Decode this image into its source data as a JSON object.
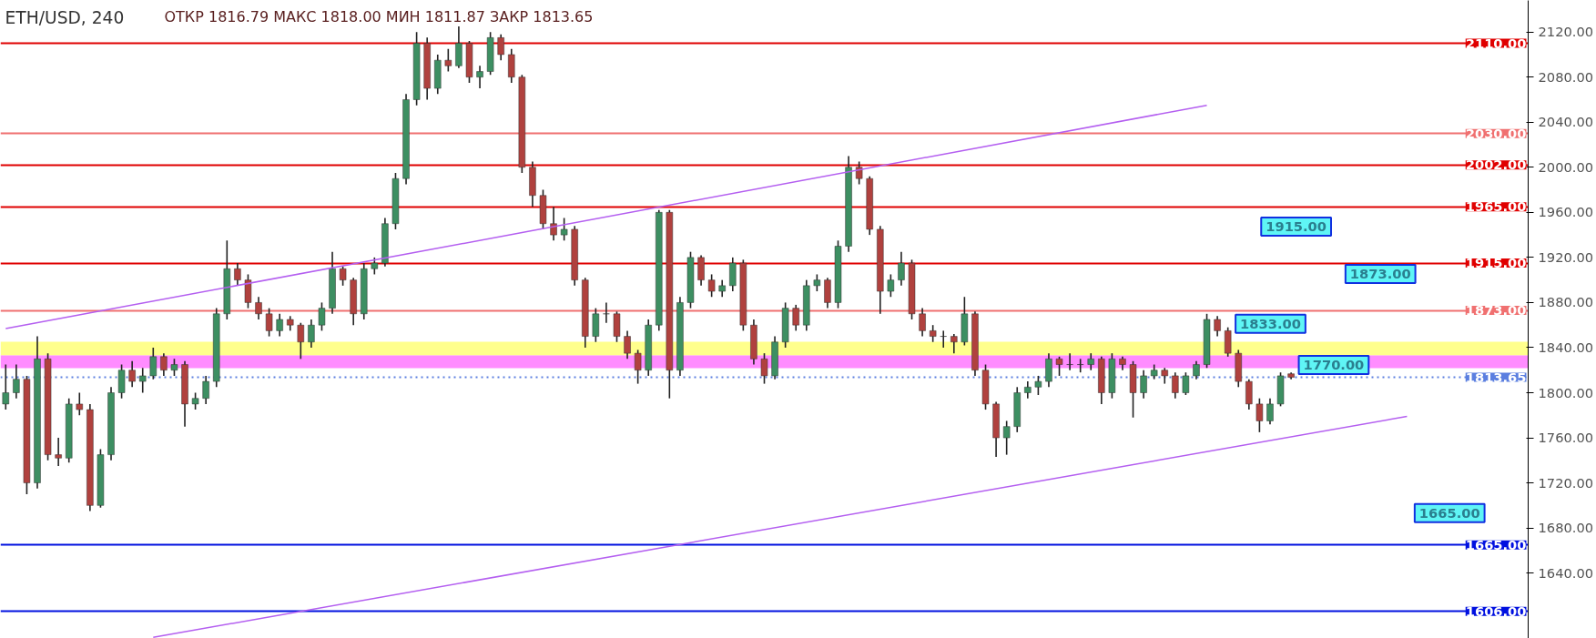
{
  "chart_data": {
    "type": "candlestick",
    "title": "ETH/USD, 240",
    "subtitle": "ОТКР 1816.79 МАКС 1818.00 МИН 1811.87 ЗАКР 1813.65",
    "categories": [
      null,
      null,
      null,
      null,
      null,
      null,
      null,
      null,
      null,
      null,
      null,
      null,
      null,
      null,
      null,
      null,
      null,
      null,
      null,
      null,
      null,
      null,
      null,
      null,
      null,
      null,
      null,
      null,
      null,
      null,
      null,
      null,
      null,
      null,
      null,
      null,
      null,
      null,
      null,
      null,
      null,
      null,
      null,
      null,
      null,
      null,
      null,
      null,
      null,
      null,
      null,
      null,
      null,
      null,
      null,
      null,
      null,
      null,
      null,
      null,
      null,
      null,
      null,
      null,
      null,
      null,
      null,
      null,
      null,
      null,
      null,
      null,
      null,
      null,
      null,
      null,
      null,
      null,
      null,
      null,
      null,
      null,
      null,
      null,
      null,
      null,
      null,
      null,
      null,
      null,
      null,
      null,
      null,
      null,
      null,
      null,
      null,
      null,
      null,
      null,
      null,
      null,
      null,
      null,
      null,
      null,
      null,
      null,
      null,
      null,
      null,
      null,
      null,
      null,
      null,
      null,
      null,
      null,
      null,
      null,
      null,
      null,
      null,
      null,
      null,
      null,
      null,
      null,
      null,
      null,
      null,
      null,
      null,
      null,
      null,
      null,
      null,
      null,
      null,
      null,
      null,
      null,
      null,
      null,
      null
    ],
    "ohlc": [
      [
        1790,
        1825,
        1785,
        1800
      ],
      [
        1800,
        1825,
        1795,
        1812
      ],
      [
        1812,
        1815,
        1710,
        1720
      ],
      [
        1720,
        1850,
        1715,
        1830
      ],
      [
        1830,
        1835,
        1740,
        1745
      ],
      [
        1745,
        1760,
        1735,
        1742
      ],
      [
        1742,
        1795,
        1738,
        1790
      ],
      [
        1790,
        1800,
        1780,
        1785
      ],
      [
        1785,
        1790,
        1695,
        1700
      ],
      [
        1700,
        1750,
        1698,
        1745
      ],
      [
        1745,
        1805,
        1740,
        1800
      ],
      [
        1800,
        1825,
        1795,
        1820
      ],
      [
        1820,
        1828,
        1805,
        1810
      ],
      [
        1810,
        1822,
        1800,
        1815
      ],
      [
        1815,
        1840,
        1812,
        1832
      ],
      [
        1832,
        1835,
        1815,
        1820
      ],
      [
        1820,
        1830,
        1815,
        1825
      ],
      [
        1825,
        1828,
        1770,
        1790
      ],
      [
        1790,
        1800,
        1785,
        1795
      ],
      [
        1795,
        1815,
        1790,
        1810
      ],
      [
        1810,
        1875,
        1805,
        1870
      ],
      [
        1870,
        1935,
        1865,
        1910
      ],
      [
        1910,
        1915,
        1895,
        1900
      ],
      [
        1900,
        1905,
        1875,
        1880
      ],
      [
        1880,
        1885,
        1865,
        1870
      ],
      [
        1870,
        1875,
        1850,
        1855
      ],
      [
        1855,
        1870,
        1850,
        1865
      ],
      [
        1865,
        1868,
        1855,
        1860
      ],
      [
        1860,
        1862,
        1830,
        1845
      ],
      [
        1845,
        1865,
        1840,
        1860
      ],
      [
        1860,
        1880,
        1855,
        1875
      ],
      [
        1875,
        1925,
        1870,
        1910
      ],
      [
        1910,
        1912,
        1895,
        1900
      ],
      [
        1900,
        1902,
        1860,
        1870
      ],
      [
        1870,
        1915,
        1865,
        1910
      ],
      [
        1910,
        1920,
        1905,
        1915
      ],
      [
        1915,
        1955,
        1912,
        1950
      ],
      [
        1950,
        1995,
        1945,
        1990
      ],
      [
        1990,
        2065,
        1985,
        2060
      ],
      [
        2060,
        2120,
        2055,
        2110
      ],
      [
        2110,
        2115,
        2060,
        2070
      ],
      [
        2070,
        2100,
        2065,
        2095
      ],
      [
        2095,
        2105,
        2085,
        2090
      ],
      [
        2090,
        2125,
        2088,
        2110
      ],
      [
        2110,
        2112,
        2075,
        2080
      ],
      [
        2080,
        2090,
        2070,
        2085
      ],
      [
        2085,
        2120,
        2082,
        2115
      ],
      [
        2115,
        2118,
        2095,
        2100
      ],
      [
        2100,
        2105,
        2075,
        2080
      ],
      [
        2080,
        2082,
        1995,
        2000
      ],
      [
        2000,
        2005,
        1965,
        1975
      ],
      [
        1975,
        1980,
        1945,
        1950
      ],
      [
        1950,
        1965,
        1935,
        1940
      ],
      [
        1940,
        1955,
        1935,
        1945
      ],
      [
        1945,
        1948,
        1895,
        1900
      ],
      [
        1900,
        1902,
        1840,
        1850
      ],
      [
        1850,
        1875,
        1845,
        1870
      ],
      [
        1870,
        1880,
        1862,
        1870
      ],
      [
        1870,
        1872,
        1845,
        1850
      ],
      [
        1850,
        1855,
        1830,
        1835
      ],
      [
        1835,
        1838,
        1808,
        1820
      ],
      [
        1820,
        1865,
        1815,
        1860
      ],
      [
        1860,
        1962,
        1855,
        1960
      ],
      [
        1960,
        1962,
        1795,
        1820
      ],
      [
        1820,
        1885,
        1815,
        1880
      ],
      [
        1880,
        1925,
        1875,
        1920
      ],
      [
        1920,
        1922,
        1895,
        1900
      ],
      [
        1900,
        1905,
        1885,
        1890
      ],
      [
        1890,
        1900,
        1885,
        1895
      ],
      [
        1895,
        1920,
        1890,
        1915
      ],
      [
        1915,
        1918,
        1855,
        1860
      ],
      [
        1860,
        1865,
        1825,
        1830
      ],
      [
        1830,
        1835,
        1808,
        1815
      ],
      [
        1815,
        1850,
        1812,
        1845
      ],
      [
        1845,
        1880,
        1840,
        1875
      ],
      [
        1875,
        1878,
        1855,
        1860
      ],
      [
        1860,
        1900,
        1855,
        1895
      ],
      [
        1895,
        1905,
        1890,
        1900
      ],
      [
        1900,
        1902,
        1875,
        1880
      ],
      [
        1880,
        1935,
        1875,
        1930
      ],
      [
        1930,
        2010,
        1925,
        2000
      ],
      [
        2000,
        2005,
        1985,
        1990
      ],
      [
        1990,
        1992,
        1940,
        1945
      ],
      [
        1945,
        1948,
        1870,
        1890
      ],
      [
        1890,
        1905,
        1885,
        1900
      ],
      [
        1900,
        1925,
        1895,
        1915
      ],
      [
        1915,
        1918,
        1865,
        1870
      ],
      [
        1870,
        1875,
        1850,
        1855
      ],
      [
        1855,
        1860,
        1845,
        1850
      ],
      [
        1850,
        1855,
        1840,
        1850
      ],
      [
        1850,
        1852,
        1835,
        1845
      ],
      [
        1845,
        1885,
        1842,
        1870
      ],
      [
        1870,
        1872,
        1815,
        1820
      ],
      [
        1820,
        1825,
        1785,
        1790
      ],
      [
        1790,
        1792,
        1743,
        1760
      ],
      [
        1760,
        1775,
        1745,
        1770
      ],
      [
        1770,
        1805,
        1765,
        1800
      ],
      [
        1800,
        1810,
        1795,
        1805
      ],
      [
        1805,
        1815,
        1798,
        1810
      ],
      [
        1810,
        1835,
        1805,
        1830
      ],
      [
        1830,
        1832,
        1815,
        1825
      ],
      [
        1825,
        1835,
        1820,
        1825
      ],
      [
        1825,
        1830,
        1818,
        1825
      ],
      [
        1825,
        1835,
        1820,
        1830
      ],
      [
        1830,
        1832,
        1790,
        1800
      ],
      [
        1800,
        1835,
        1795,
        1830
      ],
      [
        1830,
        1832,
        1820,
        1825
      ],
      [
        1825,
        1828,
        1778,
        1800
      ],
      [
        1800,
        1820,
        1795,
        1815
      ],
      [
        1815,
        1825,
        1812,
        1820
      ],
      [
        1820,
        1822,
        1808,
        1815
      ],
      [
        1815,
        1818,
        1795,
        1800
      ],
      [
        1800,
        1818,
        1798,
        1815
      ],
      [
        1815,
        1828,
        1812,
        1825
      ],
      [
        1825,
        1870,
        1822,
        1865
      ],
      [
        1865,
        1868,
        1850,
        1855
      ],
      [
        1855,
        1858,
        1832,
        1835
      ],
      [
        1835,
        1838,
        1805,
        1810
      ],
      [
        1810,
        1812,
        1785,
        1790
      ],
      [
        1790,
        1795,
        1765,
        1775
      ],
      [
        1775,
        1795,
        1772,
        1790
      ],
      [
        1790,
        1818,
        1788,
        1815
      ],
      [
        1816.79,
        1818.0,
        1811.87,
        1813.65
      ],
      null,
      null,
      null,
      null,
      null,
      null,
      null,
      null,
      null,
      null,
      null,
      null,
      null,
      null,
      null,
      null,
      null,
      null,
      null,
      null,
      null,
      null
    ],
    "series": [
      {
        "type": "line",
        "color": "#b45ff0",
        "values": [
          1857,
          null,
          null,
          null,
          null,
          null,
          null,
          null,
          null,
          null,
          null,
          null,
          null,
          null,
          null,
          null,
          null,
          null,
          null,
          null,
          null,
          null,
          null,
          null,
          null,
          null,
          null,
          null,
          null,
          null,
          null,
          null,
          null,
          null,
          null,
          null,
          null,
          null,
          null,
          null,
          null,
          null,
          null,
          null,
          null,
          null,
          null,
          null,
          null,
          null,
          null,
          null,
          null,
          null,
          null,
          null,
          null,
          null,
          null,
          null,
          null,
          null,
          null,
          null,
          null,
          null,
          null,
          null,
          null,
          null,
          null,
          null,
          null,
          null,
          null,
          null,
          null,
          null,
          null,
          null,
          null,
          null,
          null,
          null,
          null,
          null,
          null,
          null,
          null,
          null,
          null,
          null,
          null,
          null,
          null,
          null,
          null,
          null,
          null,
          null,
          null,
          null,
          null,
          null,
          null,
          null,
          null,
          null,
          null,
          null,
          null,
          null,
          null,
          null,
          2055,
          null,
          null,
          null,
          null,
          null,
          null,
          null,
          null,
          null,
          null,
          null,
          null,
          null,
          null,
          null,
          null,
          null,
          null,
          null,
          null,
          null,
          null,
          null,
          null,
          null,
          null,
          null,
          null,
          null,
          null
        ]
      },
      {
        "type": "line",
        "color": "#b45ff0",
        "values": [
          null,
          null,
          null,
          null,
          null,
          null,
          null,
          null,
          null,
          null,
          null,
          null,
          null,
          null,
          1583,
          null,
          null,
          null,
          null,
          null,
          null,
          null,
          null,
          null,
          null,
          null,
          null,
          null,
          null,
          null,
          null,
          null,
          null,
          null,
          null,
          null,
          null,
          null,
          null,
          null,
          null,
          null,
          null,
          null,
          null,
          null,
          null,
          null,
          null,
          null,
          null,
          null,
          null,
          null,
          null,
          null,
          null,
          null,
          null,
          null,
          null,
          null,
          null,
          null,
          null,
          null,
          null,
          null,
          null,
          null,
          null,
          null,
          null,
          null,
          null,
          null,
          null,
          null,
          null,
          null,
          null,
          null,
          null,
          null,
          null,
          null,
          null,
          null,
          null,
          null,
          null,
          null,
          null,
          null,
          null,
          null,
          null,
          null,
          null,
          null,
          null,
          null,
          null,
          null,
          null,
          null,
          null,
          null,
          null,
          null,
          null,
          null,
          null,
          null,
          null,
          null,
          null,
          null,
          null,
          null,
          null,
          null,
          null,
          null,
          null,
          null,
          null,
          null,
          null,
          null,
          null,
          null,
          null,
          1779,
          null,
          null,
          null,
          null,
          null,
          null,
          null,
          null,
          null,
          null,
          null
        ]
      }
    ],
    "ylim": [
      1582,
      2148
    ],
    "yticks": [
      {
        "value": 1640,
        "label": "1640.00"
      },
      {
        "value": 1680,
        "label": "1680.00"
      },
      {
        "value": 1720,
        "label": "1720.00"
      },
      {
        "value": 1760,
        "label": "1760.00"
      },
      {
        "value": 1800,
        "label": "1800.00"
      },
      {
        "value": 1840,
        "label": "1840.00"
      },
      {
        "value": 1880,
        "label": "1880.00"
      },
      {
        "value": 1920,
        "label": "1920.00"
      },
      {
        "value": 1960,
        "label": "1960.00"
      },
      {
        "value": 2000,
        "label": "2000.00"
      },
      {
        "value": 2040,
        "label": "2040.00"
      },
      {
        "value": 2080,
        "label": "2080.00"
      },
      {
        "value": 2120,
        "label": "2120.00"
      }
    ],
    "tick_labels": "y",
    "ref_lines": [
      {
        "axis": "y",
        "value": 2110,
        "label": "2110.00",
        "color": "#e00000"
      },
      {
        "axis": "y",
        "value": 2030,
        "label": "2030.00",
        "color": "#f07070"
      },
      {
        "axis": "y",
        "value": 2002,
        "label": "2002.00",
        "color": "#e00000"
      },
      {
        "axis": "y",
        "value": 1965,
        "label": "1965.00",
        "color": "#e00000"
      },
      {
        "axis": "y",
        "value": 1915,
        "label": "1915.00",
        "color": "#e00000"
      },
      {
        "axis": "y",
        "value": 1873,
        "label": "1873.00",
        "color": "#f07070"
      },
      {
        "axis": "y",
        "value": 1813.65,
        "label": "1813.65",
        "color": "#5b7fe0",
        "line_style": "dotted"
      },
      {
        "axis": "y",
        "value": 1665,
        "label": "1665.00",
        "color": "#0010e0"
      },
      {
        "axis": "y",
        "value": 1606,
        "label": "1606.00",
        "color": "#0010e0"
      }
    ],
    "bands": [
      {
        "axis": "y",
        "from": 1833,
        "to": 1845,
        "color": "#ffff80"
      },
      {
        "axis": "y",
        "from": 1822,
        "to": 1833,
        "color": "#ff80ff"
      }
    ],
    "annotations": [
      {
        "text": "1915.00",
        "y": 1915
      },
      {
        "text": "1873.00",
        "y": 1873
      },
      {
        "text": "1833.00",
        "y": 1833
      },
      "1770.00",
      {
        "text": "1665.00",
        "y": 1665
      }
    ],
    "grid": false
  }
}
